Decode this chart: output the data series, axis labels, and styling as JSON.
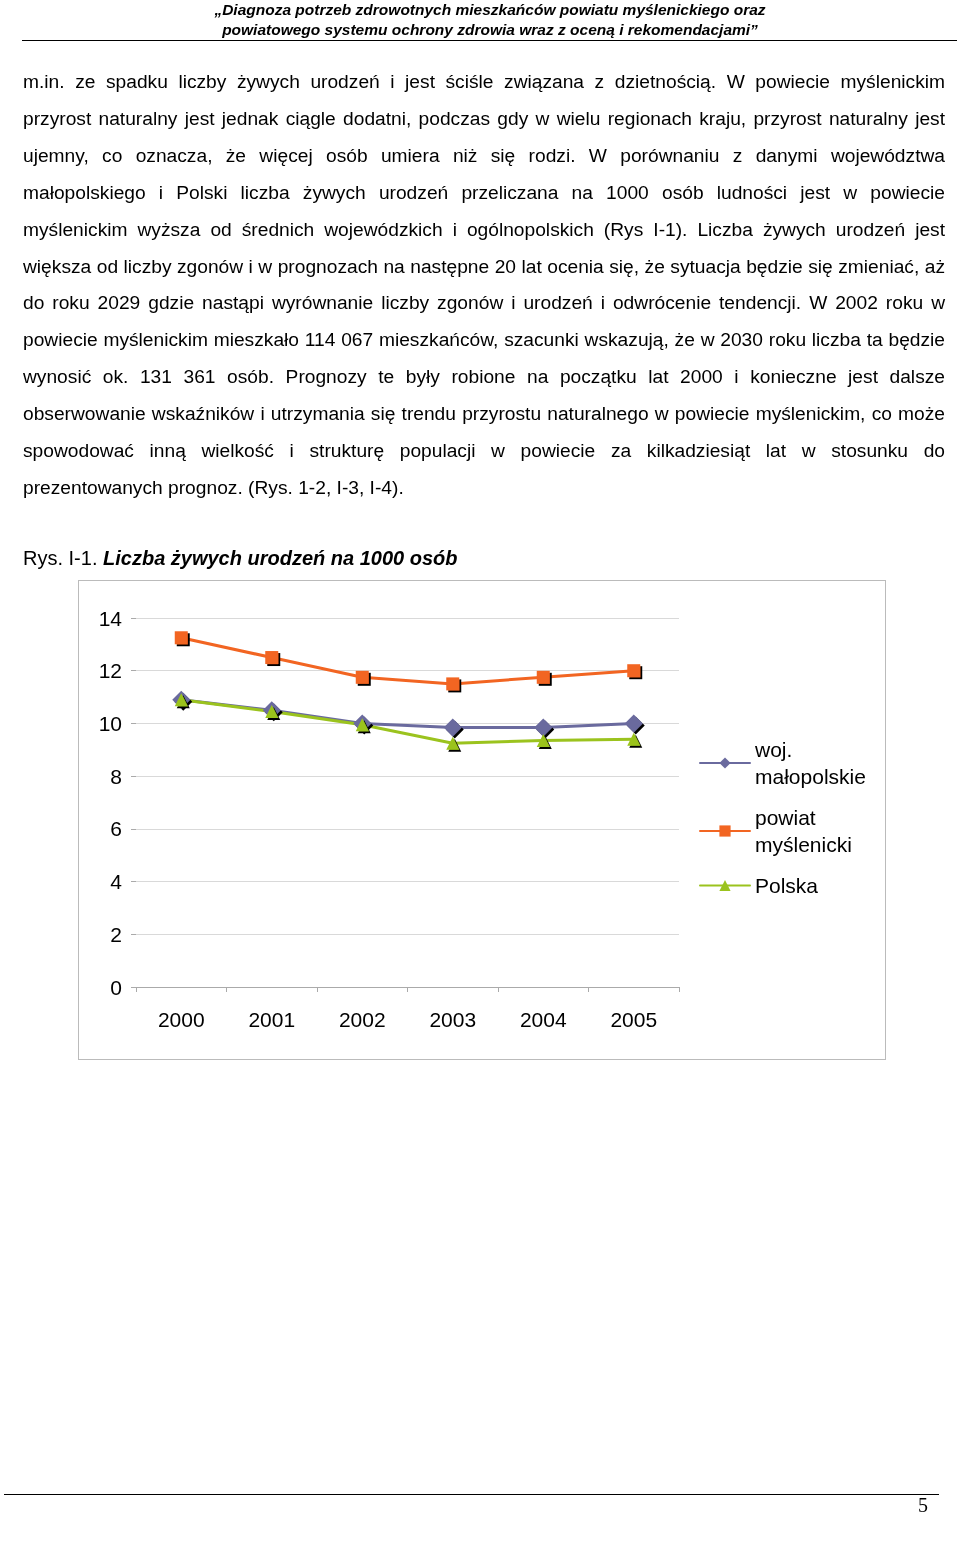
{
  "chart_data": {
    "type": "line",
    "subtitle": "Rys. I-1.",
    "title": "Liczba żywych urodzeń na 1000 osób",
    "annotations": [
      "„Diagnoza potrzeb zdrowotnych mieszkańców powiatu myślenickiego oraz powiatowego systemu ochrony zdrowia wraz z oceną i rekomendacjami”",
      "m.in. ze spadku liczby żywych urodzeń i jest ściśle związana z dzietnością. W powiecie myślenickim przyrost naturalny jest jednak ciągle dodatni, podczas gdy w wielu regionach kraju, przyrost naturalny jest ujemny, co oznacza, że więcej osób umiera niż się rodzi. W porównaniu z danymi województwa małopolskiego i Polski liczba żywych urodzeń przeliczana na 1000 osób ludności jest w powiecie myślenickim wyższa od średnich wojewódzkich i ogólnopolskich (Rys I-1). Liczba żywych urodzeń jest większa od liczby zgonów i w prognozach na następne 20 lat ocenia się, że sytuacja będzie się zmieniać, aż do roku 2029 gdzie nastąpi wyrównanie liczby zgonów i urodzeń i odwrócenie tendencji. W 2002 roku w powiecie myślenickim mieszkało 114 067 mieszkańców, szacunki wskazują, że w 2030 roku liczba ta będzie wynosić ok. 131 361 osób. Prognozy te były robione na początku lat 2000 i konieczne jest dalsze obserwowanie wskaźników i utrzymania się trendu przyrostu naturalnego w powiecie myślenickim, co może spowodować inną wielkość i strukturę populacji w powiecie za kilkadziesiąt lat w stosunku do prezentowanych prognoz. (Rys. 1-2, I-3, I-4).",
      "5"
    ],
    "categories": [
      "2000",
      "2001",
      "2002",
      "2003",
      "2004",
      "2005"
    ],
    "series": [
      {
        "name": "woj. małopolskie",
        "color": "#6a6a9e",
        "marker": "diamond",
        "values": [
          10.9,
          10.5,
          10.0,
          9.85,
          9.85,
          10.0
        ]
      },
      {
        "name": "powiat myślenicki",
        "color": "#f26522",
        "marker": "square",
        "values": [
          13.25,
          12.5,
          11.75,
          11.5,
          11.75,
          12.0
        ]
      },
      {
        "name": "Polska",
        "color": "#9bc31e",
        "marker": "triangle",
        "values": [
          10.9,
          10.45,
          9.95,
          9.25,
          9.35,
          9.4
        ]
      }
    ],
    "ylim": [
      0,
      14
    ],
    "yticks": [
      0,
      2,
      4,
      6,
      8,
      10,
      12,
      14
    ],
    "grid": "y",
    "legend": "right",
    "line_style": "solid"
  }
}
